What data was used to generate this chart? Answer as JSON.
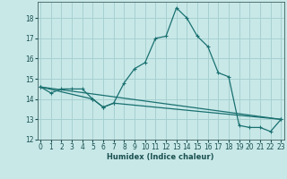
{
  "xlabel": "Humidex (Indice chaleur)",
  "background_color": "#c8e8e8",
  "grid_color": "#a8d0d0",
  "line_color": "#1a7070",
  "ylim": [
    12,
    18.8
  ],
  "yticks": [
    12,
    13,
    14,
    15,
    16,
    17,
    18
  ],
  "xlim": [
    -0.3,
    23.3
  ],
  "xticks": [
    0,
    1,
    2,
    3,
    4,
    5,
    6,
    7,
    8,
    9,
    10,
    11,
    12,
    13,
    14,
    15,
    16,
    17,
    18,
    19,
    20,
    21,
    22,
    23
  ],
  "line1_x": [
    0,
    1,
    2,
    3,
    4,
    5,
    6,
    7,
    8,
    9,
    10,
    11,
    12,
    13,
    14,
    15,
    16,
    17,
    18,
    19,
    20,
    21,
    22,
    23
  ],
  "line1_y": [
    14.6,
    14.3,
    14.5,
    14.5,
    14.5,
    14.0,
    13.6,
    13.8,
    14.8,
    15.5,
    15.8,
    17.0,
    17.1,
    18.5,
    18.0,
    17.1,
    16.6,
    15.3,
    15.1,
    12.7,
    12.6,
    12.6,
    12.4,
    13.0
  ],
  "line2_x": [
    0,
    23
  ],
  "line2_y": [
    14.6,
    13.0
  ],
  "line3_x": [
    0,
    5,
    6,
    7,
    23
  ],
  "line3_y": [
    14.6,
    14.0,
    13.6,
    13.8,
    13.0
  ]
}
